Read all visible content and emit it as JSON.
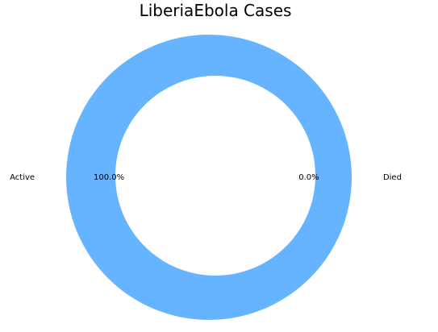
{
  "chart_data": {
    "type": "pie",
    "title": "LiberiaEbola  Cases",
    "categories": [
      "Active",
      "Died"
    ],
    "values": [
      100.0,
      0.0
    ],
    "percent_labels": [
      "100.0%",
      "0.0%"
    ],
    "colors": [
      "#66b3ff",
      "#ff9999"
    ],
    "donut": true,
    "legend": "none"
  }
}
